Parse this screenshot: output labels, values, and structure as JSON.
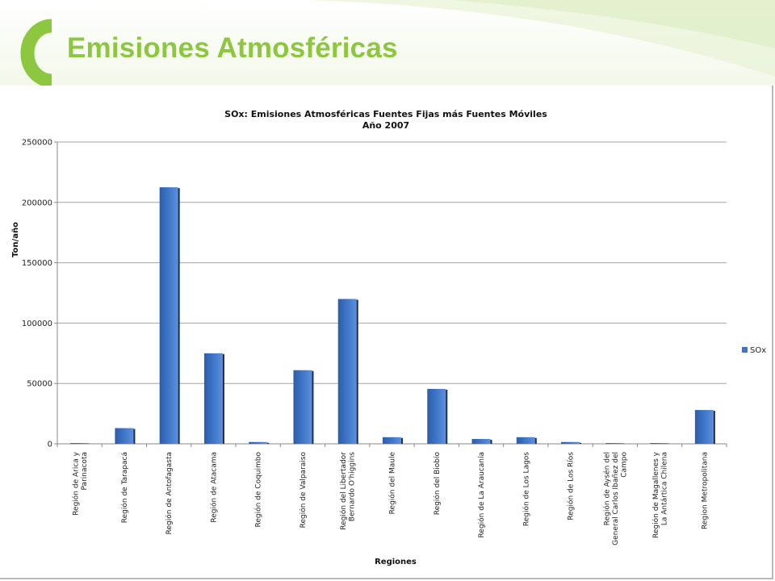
{
  "slide": {
    "title": "Emisiones Atmosféricas",
    "accent_color": "#8dc63f"
  },
  "chart_data": {
    "type": "bar",
    "title": "SOx: Emisiones Atmosféricas Fuentes Fijas más Fuentes Móviles",
    "subtitle": "Año 2007",
    "xlabel": "Regiones",
    "ylabel": "Ton/año",
    "ylim": [
      0,
      250000
    ],
    "yticks": [
      "0",
      "50000",
      "100000",
      "150000",
      "200000",
      "250000"
    ],
    "grid": true,
    "legend_position": "right",
    "categories": [
      [
        "Región de Arica y",
        "Parinacota"
      ],
      [
        "Región de Tarapacá"
      ],
      [
        "Región de Antofagasta"
      ],
      [
        "Región de Atacama"
      ],
      [
        "Región de Coquimbo"
      ],
      [
        "Región de Valparaiso"
      ],
      [
        "Región del Libertador",
        "Bernardo O'higgins"
      ],
      [
        "Región del Maule"
      ],
      [
        "Región del Biobío"
      ],
      [
        "Región de La Araucanía"
      ],
      [
        "Región de Los Lagos"
      ],
      [
        "Región de Los Ríos"
      ],
      [
        "Región de Aysén del",
        "General Carlos Ibañez del",
        "Campo"
      ],
      [
        "Región de Magallenes y",
        "La Antártica Chilena"
      ],
      [
        "Region Metropolitana"
      ]
    ],
    "series": [
      {
        "name": "SOx",
        "color": "#3d74c6",
        "values": [
          500,
          13000,
          212500,
          75000,
          1500,
          61000,
          120000,
          5500,
          45500,
          4000,
          5500,
          1500,
          200,
          500,
          28000
        ]
      }
    ]
  }
}
